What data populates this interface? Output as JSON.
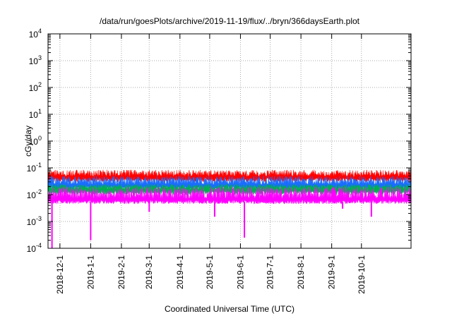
{
  "chart_data": {
    "type": "area",
    "title": "/data/run/goesPlots/archive/2019-11-19/flux/../bryn/366daysEarth.plot",
    "xlabel": "Coordinated Universal Time (UTC)",
    "ylabel": "cGy/day",
    "yscale": "log",
    "ylim": [
      0.0001,
      10000
    ],
    "xlim": [
      "2018-11-19",
      "2019-11-19"
    ],
    "grid": true,
    "legend": "none",
    "y_ticks": [
      {
        "base": "10",
        "exp": "-4"
      },
      {
        "base": "10",
        "exp": "-3"
      },
      {
        "base": "10",
        "exp": "-2"
      },
      {
        "base": "10",
        "exp": "-1"
      },
      {
        "base": "10",
        "exp": "0"
      },
      {
        "base": "10",
        "exp": "1"
      },
      {
        "base": "10",
        "exp": "2"
      },
      {
        "base": "10",
        "exp": "3"
      },
      {
        "base": "10",
        "exp": "4"
      }
    ],
    "x_ticks": [
      {
        "label": "2018-12-1",
        "day": 12
      },
      {
        "label": "2019-1-1",
        "day": 43
      },
      {
        "label": "2019-2-1",
        "day": 74
      },
      {
        "label": "2019-3-1",
        "day": 102
      },
      {
        "label": "2019-4-1",
        "day": 133
      },
      {
        "label": "2019-5-1",
        "day": 163
      },
      {
        "label": "2019-6-1",
        "day": 194
      },
      {
        "label": "2019-7-1",
        "day": 224
      },
      {
        "label": "2019-8-1",
        "day": 255
      },
      {
        "label": "2019-9-1",
        "day": 286
      },
      {
        "label": "2019-10-1",
        "day": 316
      }
    ],
    "x_days_total": 366,
    "series": [
      {
        "name": "red",
        "color": "#ff0000",
        "typical_min": 0.03,
        "typical_max": 0.085
      },
      {
        "name": "blue",
        "color": "#1a6cff",
        "typical_min": 0.015,
        "typical_max": 0.05
      },
      {
        "name": "green",
        "color": "#00b050",
        "typical_min": 0.01,
        "typical_max": 0.025
      },
      {
        "name": "magenta",
        "color": "#ff00ff",
        "typical_min": 0.0045,
        "typical_max": 0.02,
        "dips": [
          {
            "day": 4,
            "value": 0.0001
          },
          {
            "day": 43,
            "value": 0.0002
          },
          {
            "day": 102,
            "value": 0.0023
          },
          {
            "day": 168,
            "value": 0.0015
          },
          {
            "day": 198,
            "value": 0.00025
          },
          {
            "day": 297,
            "value": 0.003
          },
          {
            "day": 326,
            "value": 0.0015
          }
        ]
      }
    ]
  }
}
